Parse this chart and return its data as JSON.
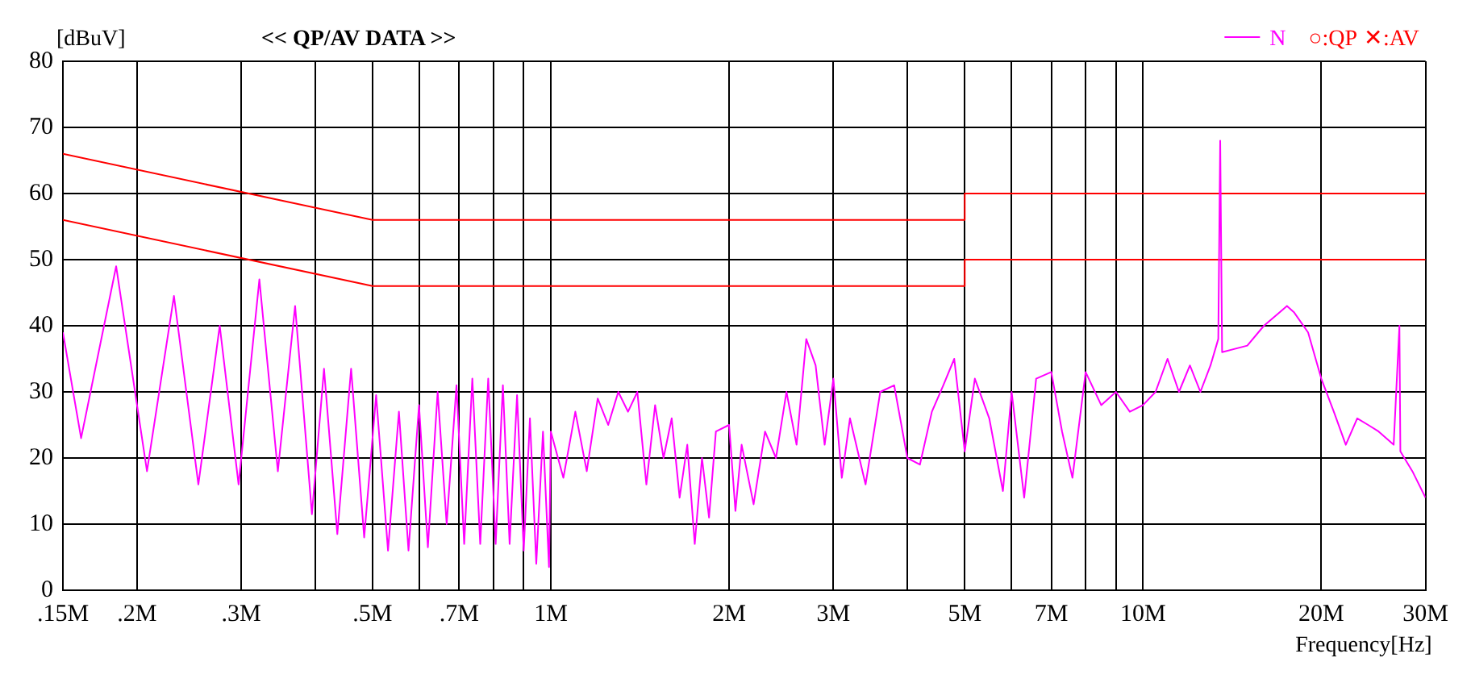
{
  "chart_data": {
    "type": "line",
    "title": "<< QP/AV DATA >>",
    "ylabel": "[dBuV]",
    "xlabel": "Frequency[Hz]",
    "log": "x",
    "grid": true,
    "legend": "top right",
    "marker": "none",
    "line_style": "solid",
    "xlim": [
      0.15,
      30
    ],
    "ylim": [
      0,
      80
    ],
    "xticks": [
      {
        "value": 0.15,
        "label": ".15M"
      },
      {
        "value": 0.2,
        "label": ".2M"
      },
      {
        "value": 0.3,
        "label": ".3M"
      },
      {
        "value": 0.4,
        "label": null
      },
      {
        "value": 0.5,
        "label": ".5M"
      },
      {
        "value": 0.6,
        "label": null
      },
      {
        "value": 0.7,
        "label": ".7M"
      },
      {
        "value": 0.8,
        "label": null
      },
      {
        "value": 0.9,
        "label": null
      },
      {
        "value": 1,
        "label": "1M"
      },
      {
        "value": 2,
        "label": "2M"
      },
      {
        "value": 3,
        "label": "3M"
      },
      {
        "value": 4,
        "label": null
      },
      {
        "value": 5,
        "label": "5M"
      },
      {
        "value": 6,
        "label": null
      },
      {
        "value": 7,
        "label": "7M"
      },
      {
        "value": 8,
        "label": null
      },
      {
        "value": 9,
        "label": null
      },
      {
        "value": 10,
        "label": "10M"
      },
      {
        "value": 20,
        "label": "20M"
      },
      {
        "value": 30,
        "label": "30M"
      }
    ],
    "yticks": [
      0,
      10,
      20,
      30,
      40,
      50,
      60,
      70,
      80
    ],
    "annotations": [
      "○:QP",
      "✕:AV"
    ],
    "series": [
      {
        "name": "N",
        "color": "#ff00ff",
        "x": [
          0.15,
          0.161,
          0.1845,
          0.208,
          0.231,
          0.254,
          0.276,
          0.297,
          0.322,
          0.346,
          0.37,
          0.395,
          0.414,
          0.436,
          0.46,
          0.484,
          0.507,
          0.531,
          0.554,
          0.575,
          0.599,
          0.62,
          0.644,
          0.667,
          0.693,
          0.714,
          0.737,
          0.76,
          0.784,
          0.807,
          0.83,
          0.852,
          0.877,
          0.9,
          0.922,
          0.945,
          0.97,
          0.993,
          1.0,
          1.05,
          1.1,
          1.15,
          1.2,
          1.25,
          1.3,
          1.35,
          1.4,
          1.45,
          1.5,
          1.55,
          1.6,
          1.65,
          1.7,
          1.75,
          1.8,
          1.85,
          1.9,
          2.0,
          2.05,
          2.1,
          2.2,
          2.3,
          2.4,
          2.5,
          2.6,
          2.7,
          2.8,
          2.9,
          3.0,
          3.1,
          3.2,
          3.4,
          3.6,
          3.8,
          4.0,
          4.2,
          4.4,
          4.6,
          4.8,
          5.0,
          5.2,
          5.5,
          5.8,
          6.0,
          6.3,
          6.6,
          7.0,
          7.3,
          7.6,
          8.0,
          8.5,
          9.0,
          9.5,
          10,
          10.5,
          11,
          11.5,
          12,
          12.5,
          13,
          13.4,
          13.5,
          13.6,
          15,
          16,
          17,
          17.5,
          18,
          19,
          20,
          21,
          22,
          23,
          24,
          25,
          26.5,
          27.1,
          27.2,
          28.5,
          30
        ],
        "values": [
          39,
          23,
          49,
          18,
          44.5,
          16,
          40,
          16,
          47,
          18,
          43,
          11.5,
          33.5,
          8.5,
          33.5,
          8,
          29.5,
          6,
          27,
          6,
          28,
          6.5,
          30,
          10,
          31,
          7,
          32,
          7,
          32,
          7,
          31,
          7,
          29.5,
          6,
          26,
          4,
          24,
          3.5,
          24,
          17,
          27,
          18,
          29,
          25,
          30,
          27,
          30,
          16,
          28,
          20,
          26,
          14,
          22,
          7,
          20,
          11,
          24,
          25,
          12,
          22,
          13,
          24,
          20,
          30,
          22,
          38,
          34,
          22,
          32,
          17,
          26,
          16,
          30,
          31,
          20,
          19,
          27,
          31,
          35,
          21,
          32,
          26,
          15,
          30,
          14,
          32,
          33,
          24,
          17,
          33,
          28,
          30,
          27,
          28,
          30,
          35,
          30,
          34,
          30,
          34,
          38,
          68,
          36,
          37,
          40,
          42,
          43,
          42,
          39,
          32,
          27,
          22,
          26,
          25,
          24,
          22,
          40,
          21,
          18,
          14
        ]
      },
      {
        "color": "#ff0000",
        "x": [
          0.15,
          0.5,
          5,
          5,
          30
        ],
        "values": [
          66,
          56,
          56,
          60,
          60
        ]
      },
      {
        "color": "#ff0000",
        "x": [
          0.15,
          0.5,
          5,
          5,
          30
        ],
        "values": [
          56,
          46,
          46,
          50,
          50
        ]
      }
    ]
  }
}
